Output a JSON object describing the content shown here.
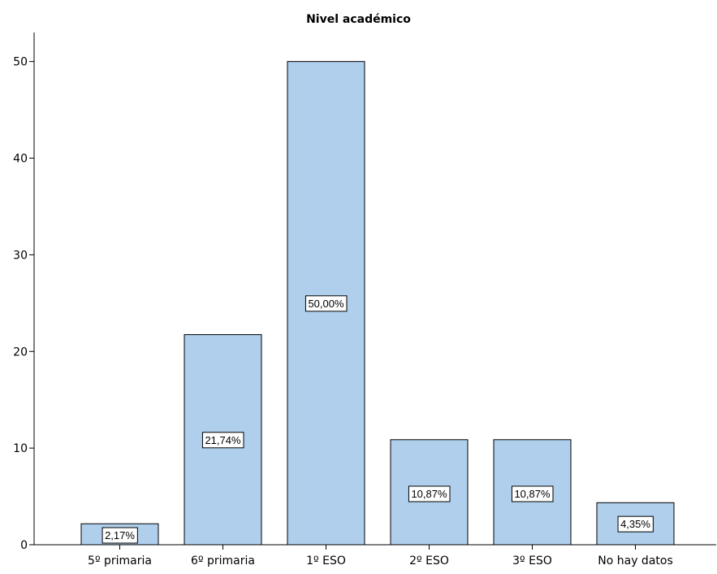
{
  "chart_data": {
    "type": "bar",
    "title": "Nivel académico",
    "xlabel": "",
    "ylabel": "",
    "categories": [
      "5º primaria",
      "6º primaria",
      "1º ESO",
      "2º ESO",
      "3º ESO",
      "No hay datos"
    ],
    "values": [
      2.17,
      21.74,
      50.0,
      10.87,
      10.87,
      4.35
    ],
    "data_labels": [
      "2,17%",
      "21,74%",
      "50,00%",
      "10,87%",
      "10,87%",
      "4,35%"
    ],
    "y_ticks": [
      0,
      10,
      20,
      30,
      40,
      50
    ],
    "ylim": [
      0,
      53
    ],
    "grid": false,
    "colors": {
      "bar_fill": "#afcfed",
      "bar_stroke": "#000000",
      "axis": "#000000",
      "label_box": "#ffffff"
    }
  }
}
